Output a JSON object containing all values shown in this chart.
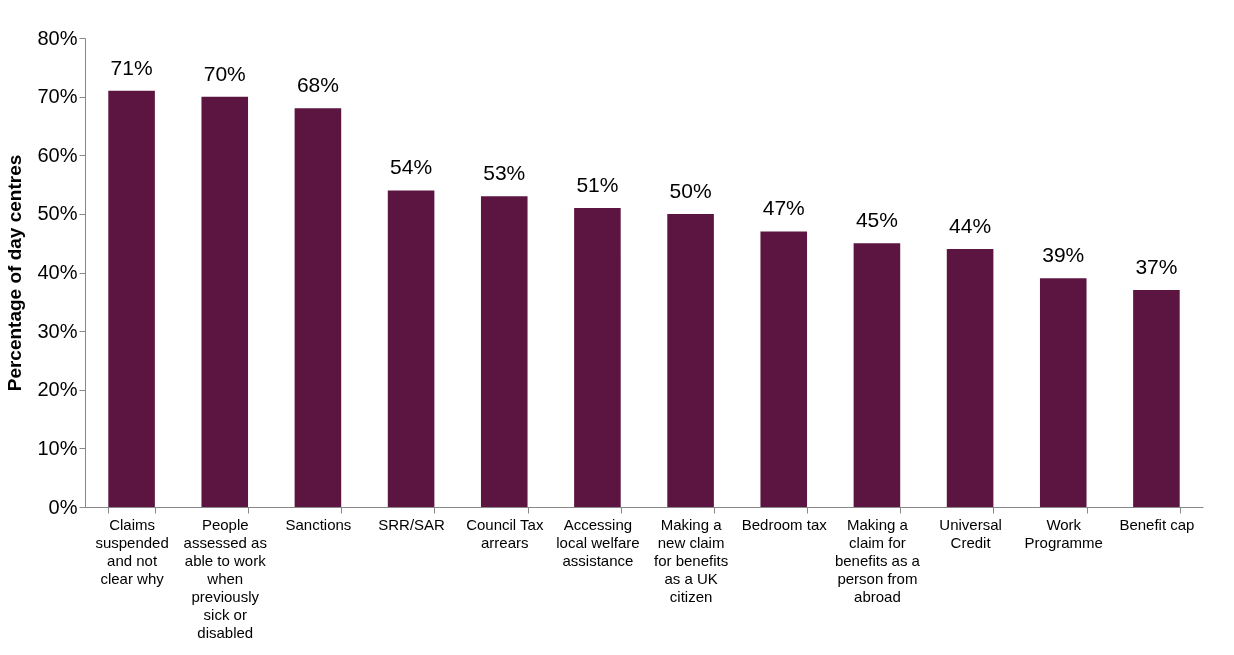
{
  "chart_data": {
    "type": "bar",
    "ylabel": "Percentage of day centres",
    "categories": [
      "Claims suspended and not clear why",
      "People assessed as able to work when previously sick or disabled",
      "Sanctions",
      "SRR/SAR",
      "Council Tax arrears",
      "Accessing local welfare assistance",
      "Making a new claim for benefits as a UK citizen",
      "Bedroom tax",
      "Making a claim for benefits as a person from abroad",
      "Universal Credit",
      "Work Programme",
      "Benefit cap"
    ],
    "values": [
      71,
      70,
      68,
      54,
      53,
      51,
      50,
      47,
      45,
      44,
      39,
      37
    ],
    "color": "#5c1541",
    "ylim": [
      0,
      80
    ],
    "yticks": [
      {
        "value": 0,
        "label": "0%"
      },
      {
        "value": 10,
        "label": "10%"
      },
      {
        "value": 20,
        "label": "20%"
      },
      {
        "value": 30,
        "label": "30%"
      },
      {
        "value": 40,
        "label": "40%"
      },
      {
        "value": 50,
        "label": "50%"
      },
      {
        "value": 60,
        "label": "60%"
      },
      {
        "value": 70,
        "label": "70%"
      },
      {
        "value": 80,
        "label": "80%"
      }
    ],
    "value_labels": [
      "71%",
      "70%",
      "68%",
      "54%",
      "53%",
      "51%",
      "50%",
      "47%",
      "45%",
      "44%",
      "39%",
      "37%"
    ]
  }
}
